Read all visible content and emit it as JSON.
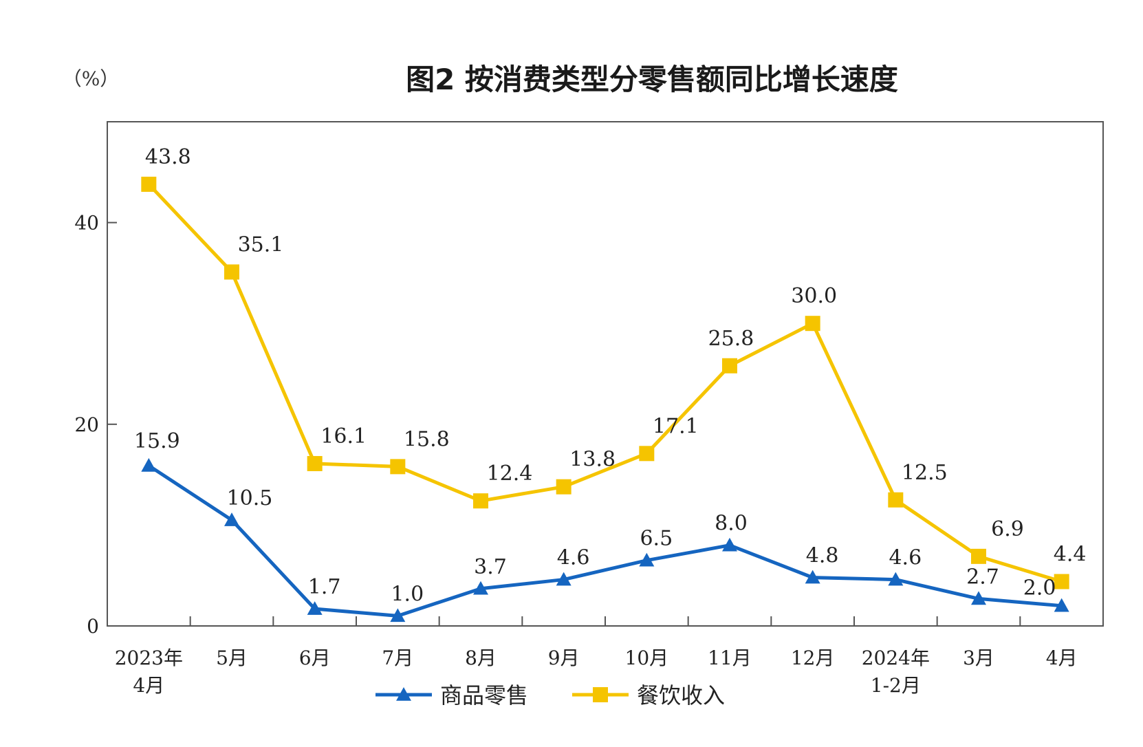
{
  "chart_data": {
    "type": "line",
    "title": "图2  按消费类型分零售额同比增长速度",
    "unit_label": "（%）",
    "ylim": [
      0,
      50
    ],
    "yticks": [
      0,
      20,
      40
    ],
    "grid": false,
    "legend_position": "bottom",
    "categories": [
      [
        "2023年",
        "4月"
      ],
      [
        "5月"
      ],
      [
        "6月"
      ],
      [
        "7月"
      ],
      [
        "8月"
      ],
      [
        "9月"
      ],
      [
        "10月"
      ],
      [
        "11月"
      ],
      [
        "12月"
      ],
      [
        "2024年",
        "1-2月"
      ],
      [
        "3月"
      ],
      [
        "4月"
      ]
    ],
    "series": [
      {
        "name": "商品零售",
        "color": "#1565C0",
        "marker": "triangle",
        "values": [
          15.9,
          10.5,
          1.7,
          1.0,
          3.7,
          4.6,
          6.5,
          8.0,
          4.8,
          4.6,
          2.7,
          2.0
        ],
        "labels": [
          "15.9",
          "10.5",
          "1.7",
          "1.0",
          "3.7",
          "4.6",
          "6.5",
          "8.0",
          "4.8",
          "4.6",
          "2.7",
          "2.0"
        ]
      },
      {
        "name": "餐饮收入",
        "color": "#F5C400",
        "marker": "square",
        "values": [
          43.8,
          35.1,
          16.1,
          15.8,
          12.4,
          13.8,
          17.1,
          25.8,
          30.0,
          12.5,
          6.9,
          4.4
        ],
        "labels": [
          "43.8",
          "35.1",
          "16.1",
          "15.8",
          "12.4",
          "13.8",
          "17.1",
          "25.8",
          "30.0",
          "12.5",
          "6.9",
          "4.4"
        ]
      }
    ]
  }
}
